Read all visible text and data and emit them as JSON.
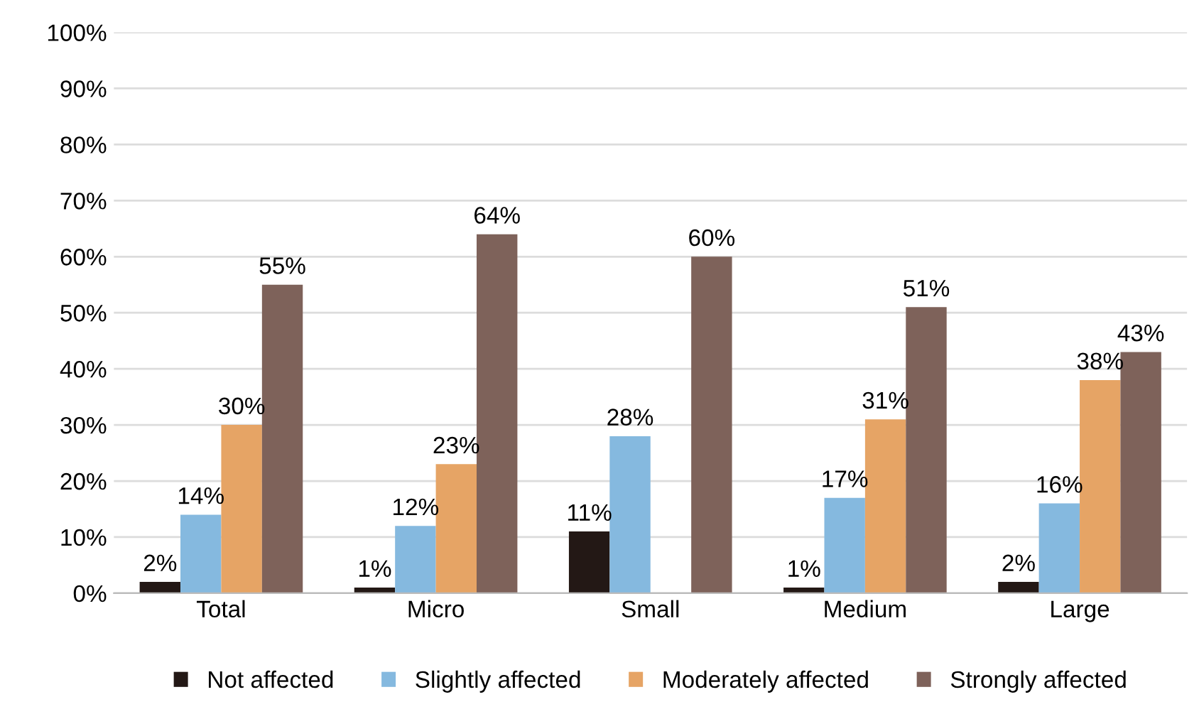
{
  "chart_data": {
    "type": "bar",
    "categories": [
      "Total",
      "Micro",
      "Small",
      "Medium",
      "Large"
    ],
    "series": [
      {
        "name": "Not affected",
        "color": "#231815",
        "values": [
          2,
          1,
          11,
          1,
          2
        ],
        "value_labels": [
          "2%",
          "1%",
          "11%",
          "1%",
          "2%"
        ]
      },
      {
        "name": "Slightly affected",
        "color": "#85b9df",
        "values": [
          14,
          12,
          28,
          17,
          16
        ],
        "value_labels": [
          "14%",
          "12%",
          "28%",
          "17%",
          "16%"
        ]
      },
      {
        "name": "Moderately affected",
        "color": "#e6a465",
        "values": [
          30,
          23,
          null,
          31,
          38
        ],
        "value_labels": [
          "30%",
          "23%",
          null,
          "31%",
          "38%"
        ]
      },
      {
        "name": "Strongly affected",
        "color": "#7e625a",
        "values": [
          55,
          64,
          60,
          51,
          43
        ],
        "value_labels": [
          "55%",
          "64%",
          "60%",
          "51%",
          "43%"
        ]
      }
    ],
    "ylim": [
      0,
      100
    ],
    "yticks": [
      {
        "value": 0,
        "label": "0%"
      },
      {
        "value": 10,
        "label": "10%"
      },
      {
        "value": 20,
        "label": "20%"
      },
      {
        "value": 30,
        "label": "30%"
      },
      {
        "value": 40,
        "label": "40%"
      },
      {
        "value": 50,
        "label": "50%"
      },
      {
        "value": 60,
        "label": "60%"
      },
      {
        "value": 70,
        "label": "70%"
      },
      {
        "value": 80,
        "label": "80%"
      },
      {
        "value": 90,
        "label": "90%"
      },
      {
        "value": 100,
        "label": "100%"
      }
    ],
    "grid": "y",
    "legend": "bottom"
  }
}
